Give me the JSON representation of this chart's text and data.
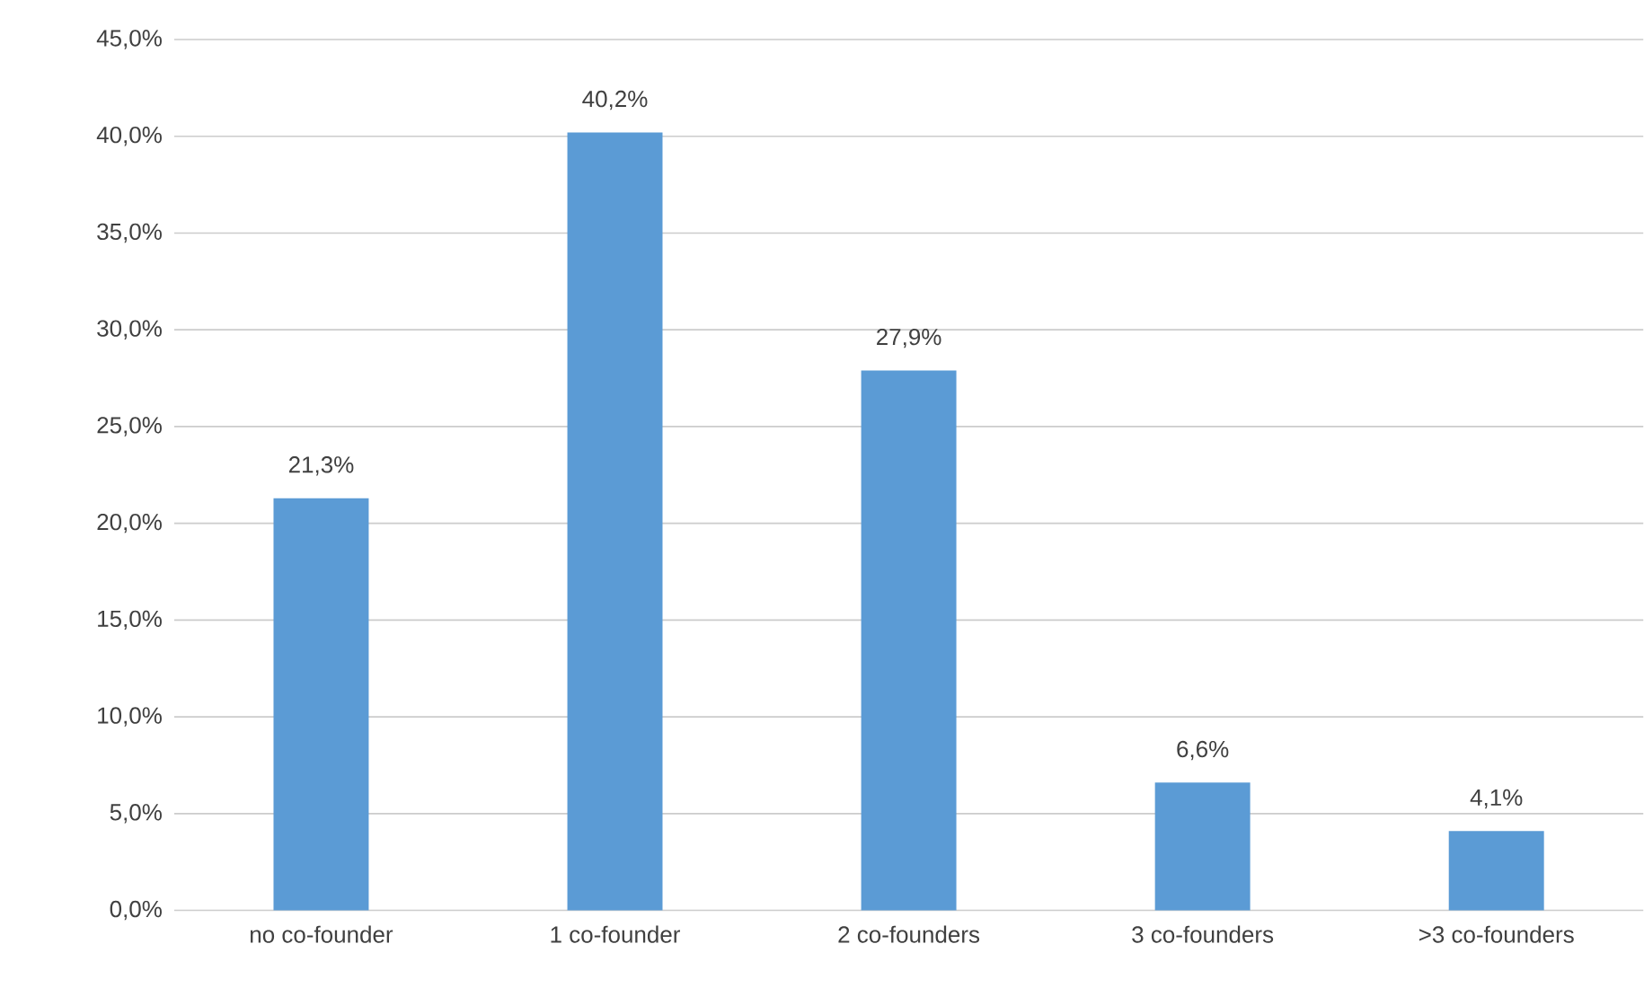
{
  "chart_data": {
    "type": "bar",
    "categories": [
      "no co-founder",
      "1 co-founder",
      "2 co-founders",
      "3 co-founders",
      ">3 co-founders"
    ],
    "values": [
      21.3,
      40.2,
      27.9,
      6.6,
      4.1
    ],
    "value_labels": [
      "21,3%",
      "40,2%",
      "27,9%",
      "6,6%",
      "4,1%"
    ],
    "color": "#5b9bd5",
    "ylim": [
      0,
      45
    ],
    "yticks": [
      {
        "value": 0,
        "label": "0,0%"
      },
      {
        "value": 5,
        "label": "5,0%"
      },
      {
        "value": 10,
        "label": "10,0%"
      },
      {
        "value": 15,
        "label": "15,0%"
      },
      {
        "value": 20,
        "label": "20,0%"
      },
      {
        "value": 25,
        "label": "25,0%"
      },
      {
        "value": 30,
        "label": "30,0%"
      },
      {
        "value": 35,
        "label": "35,0%"
      },
      {
        "value": 40,
        "label": "40,0%"
      },
      {
        "value": 45,
        "label": "45,0%"
      }
    ],
    "grid": "y"
  }
}
